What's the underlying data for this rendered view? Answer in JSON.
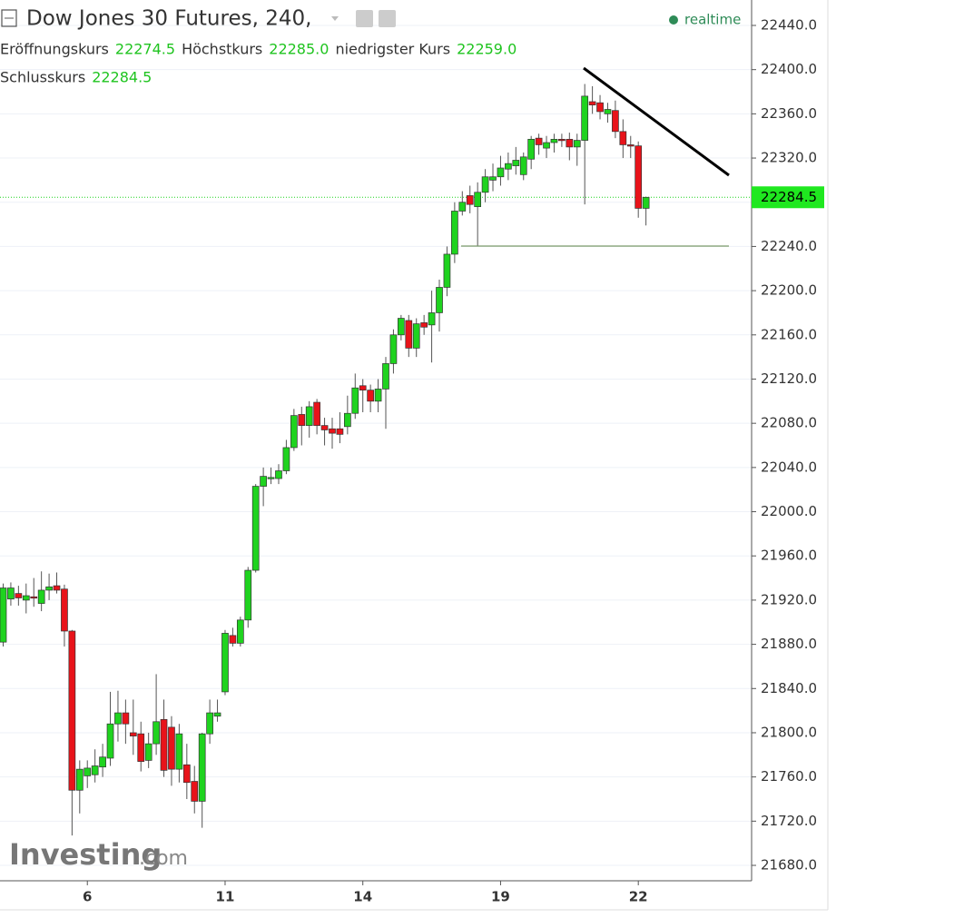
{
  "header": {
    "title": "Dow Jones 30 Futures, 240,",
    "realtime": "realtime",
    "ohlc_legend": [
      {
        "label": "Eröffnungskurs",
        "value": "22274.5"
      },
      {
        "label": "Höchstkurs",
        "value": "22285.0"
      },
      {
        "label": "niedrigster Kurs",
        "value": "22259.0"
      },
      {
        "label": "Schlusskurs",
        "value": "22284.5"
      }
    ]
  },
  "watermark": {
    "brand": "Investing",
    "suffix": ".com"
  },
  "chart_data": {
    "type": "candlestick",
    "categories": [
      null,
      null,
      null,
      null,
      null,
      null,
      null,
      null,
      null,
      null,
      null,
      "6",
      null,
      null,
      null,
      null,
      null,
      null,
      null,
      null,
      null,
      null,
      null,
      null,
      null,
      null,
      null,
      null,
      null,
      "11",
      null,
      null,
      null,
      null,
      null,
      null,
      null,
      null,
      null,
      null,
      null,
      null,
      null,
      null,
      null,
      null,
      null,
      "14",
      null,
      null,
      null,
      null,
      null,
      null,
      null,
      null,
      null,
      null,
      null,
      null,
      null,
      null,
      null,
      null,
      null,
      "19",
      null,
      null,
      null,
      null,
      null,
      null,
      null,
      null,
      null,
      null,
      null,
      null,
      null,
      null,
      null,
      null,
      null,
      "22",
      null
    ],
    "open": [
      21882,
      21921,
      21926,
      21920,
      21923,
      21917,
      21929,
      21933,
      21930,
      21892,
      21748,
      21761,
      21762,
      21769,
      21777,
      21808,
      21818,
      21800,
      21799,
      21775,
      21790,
      21812,
      21805,
      21767,
      21771,
      21756,
      21738,
      21799,
      21815,
      21837,
      21888,
      21881,
      21902,
      21947,
      22023,
      22030,
      22030,
      22037,
      22058,
      22088,
      22078,
      22099,
      22078,
      22075,
      22075,
      22077,
      22089,
      22114,
      22110,
      22100,
      22111,
      22134,
      22160,
      22173,
      22148,
      22171,
      22169,
      22180,
      22203,
      22233,
      22272,
      22286,
      22276,
      22289,
      22300,
      22303,
      22310,
      22313,
      22305,
      22319,
      22338,
      22329,
      22334,
      22337,
      22337,
      22330,
      22336,
      22371,
      22370,
      22360,
      22363,
      22344,
      22332,
      22331,
      22274.5
    ],
    "high": [
      21935,
      21936,
      21933,
      21935,
      21940,
      21946,
      21944,
      21945,
      21934,
      21893,
      21775,
      21775,
      21785,
      21790,
      21837,
      21838,
      21830,
      21830,
      21810,
      21800,
      21853,
      21830,
      21815,
      21808,
      21790,
      21770,
      21800,
      21830,
      21830,
      21893,
      21895,
      21905,
      21950,
      22025,
      22040,
      22040,
      22043,
      22065,
      22093,
      22095,
      22100,
      22102,
      22085,
      22085,
      22090,
      22105,
      22125,
      22120,
      22115,
      22120,
      22140,
      22165,
      22178,
      22178,
      22175,
      22178,
      22200,
      22210,
      22240,
      22280,
      22290,
      22295,
      22298,
      22310,
      22315,
      22322,
      22325,
      22330,
      22325,
      22340,
      22342,
      22340,
      22342,
      22342,
      22343,
      22342,
      22387,
      22385,
      22377,
      22370,
      22372,
      22355,
      22340,
      22335,
      22285
    ],
    "low": [
      21878,
      21915,
      21915,
      21908,
      21914,
      21910,
      21920,
      21926,
      21878,
      21707,
      21727,
      21750,
      21755,
      21760,
      21770,
      21792,
      21790,
      21780,
      21765,
      21768,
      21780,
      21760,
      21752,
      21755,
      21740,
      21727,
      21714,
      21790,
      21810,
      21834,
      21878,
      21878,
      21895,
      21945,
      22005,
      22025,
      22025,
      22034,
      22055,
      22060,
      22067,
      22070,
      22060,
      22057,
      22062,
      22070,
      22084,
      22090,
      22090,
      22090,
      22075,
      22125,
      22155,
      22140,
      22140,
      22160,
      22135,
      22163,
      22195,
      22225,
      22268,
      22270,
      22240,
      22280,
      22290,
      22295,
      22300,
      22305,
      22300,
      22310,
      22323,
      22320,
      22325,
      22330,
      22318,
      22313,
      22278,
      22360,
      22355,
      22352,
      22338,
      22320,
      22320,
      22266,
      22259
    ],
    "close": [
      21931,
      21931,
      21922,
      21924,
      21922,
      21929,
      21932,
      21929,
      21892,
      21748,
      21767,
      21768,
      21770,
      21778,
      21808,
      21818,
      21808,
      21797,
      21774,
      21790,
      21810,
      21766,
      21767,
      21799,
      21755,
      21738,
      21799,
      21818,
      21818,
      21890,
      21881,
      21902,
      21947,
      22023,
      22032,
      22031,
      22037,
      22058,
      22087,
      22078,
      22095,
      22078,
      22074,
      22071,
      22070,
      22089,
      22112,
      22110,
      22100,
      22111,
      22134,
      22160,
      22175,
      22148,
      22170,
      22167,
      22180,
      22203,
      22233,
      22272,
      22280,
      22278,
      22289,
      22303,
      22303,
      22311,
      22315,
      22318,
      22321,
      22337,
      22332,
      22334,
      22337,
      22336,
      22330,
      22336,
      22376,
      22368,
      22362,
      22364,
      22344,
      22332,
      22331,
      22274.5,
      22284.5
    ],
    "up_color": "#1fd31f",
    "down_color": "#e8131a",
    "ylim": [
      21667.7,
      22463
    ],
    "yticks": [
      {
        "value": 21680,
        "label": "21680.0"
      },
      {
        "value": 21720,
        "label": "21720.0"
      },
      {
        "value": 21760,
        "label": "21760.0"
      },
      {
        "value": 21800,
        "label": "21800.0"
      },
      {
        "value": 21840,
        "label": "21840.0"
      },
      {
        "value": 21880,
        "label": "21880.0"
      },
      {
        "value": 21920,
        "label": "21920.0"
      },
      {
        "value": 21960,
        "label": "21960.0"
      },
      {
        "value": 22000,
        "label": "22000.0"
      },
      {
        "value": 22040,
        "label": "22040.0"
      },
      {
        "value": 22080,
        "label": "22080.0"
      },
      {
        "value": 22120,
        "label": "22120.0"
      },
      {
        "value": 22160,
        "label": "22160.0"
      },
      {
        "value": 22200,
        "label": "22200.0"
      },
      {
        "value": 22240,
        "label": "22240.0"
      },
      {
        "value": 22280,
        "label": "22280.0"
      },
      {
        "value": 22320,
        "label": "22320.0"
      },
      {
        "value": 22360,
        "label": "22360.0"
      },
      {
        "value": 22400,
        "label": "22400.0"
      },
      {
        "value": 22440,
        "label": "22440.0"
      }
    ],
    "last_price": {
      "value": 22284.5,
      "label": "22284.5"
    },
    "grid": true
  }
}
